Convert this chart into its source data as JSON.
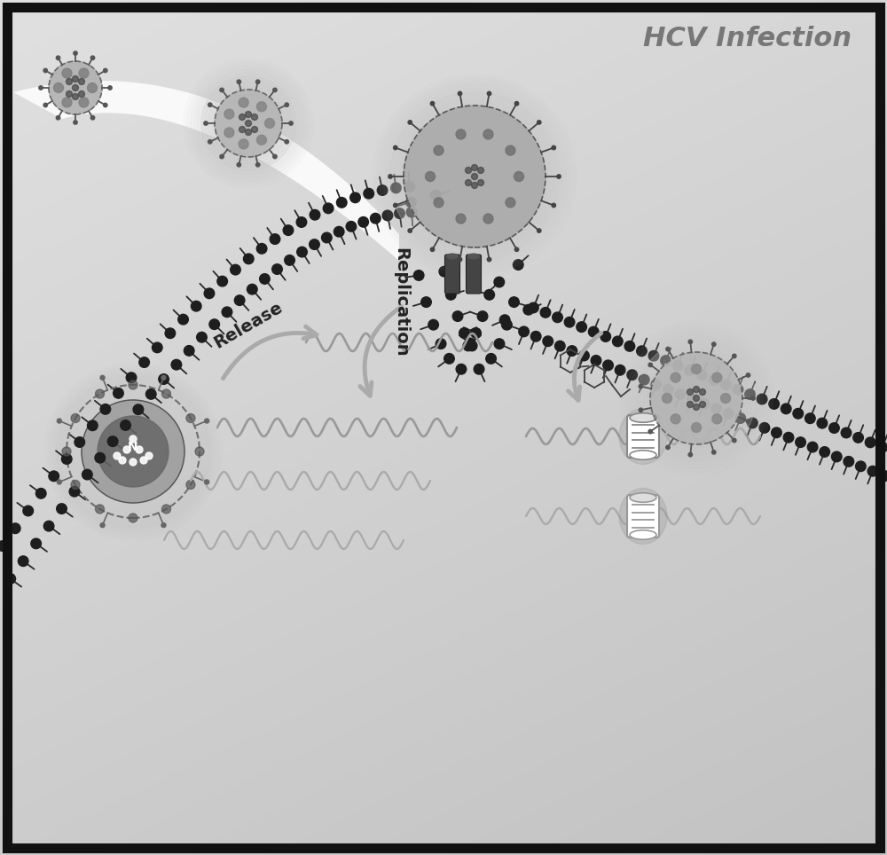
{
  "title": "HCV Infection",
  "title_color": "#777777",
  "bg_gradient_light": "#e8e8e8",
  "bg_gradient_dark": "#b8b8b8",
  "border_color": "#111111",
  "text_release": "Release",
  "text_replication": "Replication",
  "head_color": "#222222",
  "tail_color": "#333333",
  "wave_color": "#888888",
  "arrow_color": "#aaaaaa",
  "virus_body_light": "#aaaaaa",
  "virus_body_dark": "#777777",
  "virus_spike": "#444444",
  "virus_inner": "#555555"
}
